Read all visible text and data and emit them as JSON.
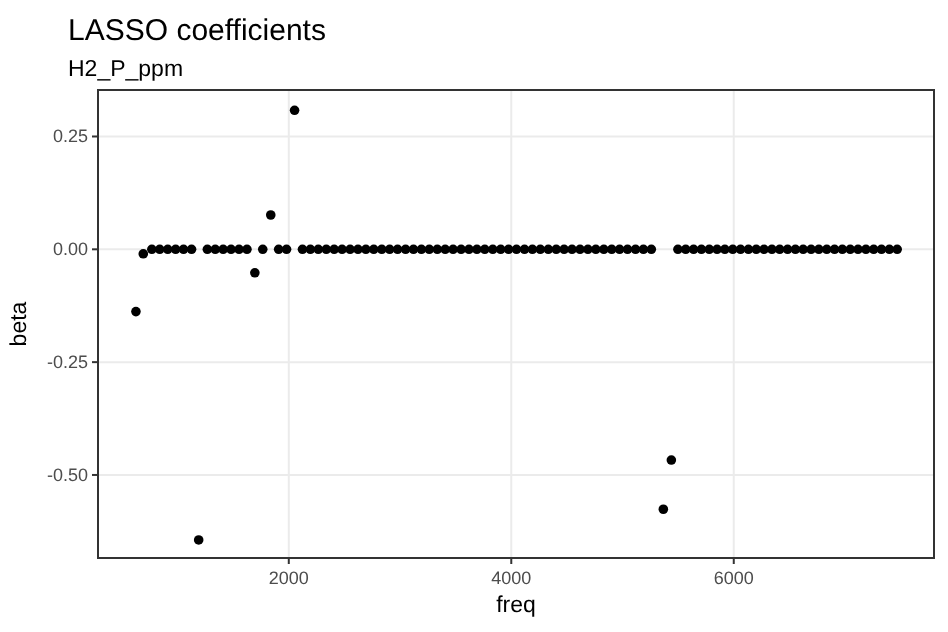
{
  "chart_data": {
    "type": "scatter",
    "title": "LASSO coefficients",
    "subtitle": "H2_P_ppm",
    "xlabel": "freq",
    "ylabel": "beta",
    "xlim": [
      285,
      7800
    ],
    "ylim": [
      -0.684,
      0.353
    ],
    "xticks": [
      2000,
      4000,
      6000
    ],
    "yticks": [
      {
        "value": -0.5,
        "label": "-0.50"
      },
      {
        "value": -0.25,
        "label": "-0.25"
      },
      {
        "value": 0,
        "label": "0.00"
      },
      {
        "value": 0.25,
        "label": "0.25"
      }
    ],
    "grid": true,
    "marker": "circle",
    "series": [
      {
        "color": "#000000",
        "x": [
          626,
          692,
          769,
          840,
          912,
          983,
          1054,
          1126,
          1190,
          1268,
          1339,
          1410,
          1481,
          1553,
          1624,
          1695,
          1766,
          1838,
          1909,
          1980,
          2052,
          2123,
          2194,
          2265,
          2337,
          2408,
          2479,
          2551,
          2622,
          2693,
          2764,
          2836,
          2907,
          2978,
          3050,
          3121,
          3192,
          3263,
          3335,
          3406,
          3477,
          3549,
          3620,
          3691,
          3762,
          3834,
          3905,
          3976,
          4047,
          4119,
          4190,
          4261,
          4333,
          4404,
          4475,
          4546,
          4618,
          4689,
          4760,
          4832,
          4903,
          4974,
          5045,
          5117,
          5188,
          5259,
          5367,
          5439,
          5498,
          5568,
          5639,
          5709,
          5780,
          5850,
          5920,
          5991,
          6061,
          6132,
          6202,
          6272,
          6343,
          6413,
          6484,
          6554,
          6624,
          6695,
          6765,
          6836,
          6906,
          6976,
          7047,
          7117,
          7188,
          7258,
          7328,
          7399,
          7469
        ],
        "values": [
          -0.138,
          -0.01,
          0,
          0,
          0,
          0,
          0,
          0,
          -0.644,
          0,
          0,
          0,
          0,
          0,
          0,
          -0.052,
          0,
          0.076,
          0,
          0,
          0.308,
          0,
          0,
          0,
          0,
          0,
          0,
          0,
          0,
          0,
          0,
          0,
          0,
          0,
          0,
          0,
          0,
          0,
          0,
          0,
          0,
          0,
          0,
          0,
          0,
          0,
          0,
          0,
          0,
          0,
          0,
          0,
          0,
          0,
          0,
          0,
          0,
          0,
          0,
          0,
          0,
          0,
          0,
          0,
          0,
          0,
          -0.576,
          -0.467,
          0,
          0,
          0,
          0,
          0,
          0,
          0,
          0,
          0,
          0,
          0,
          0,
          0,
          0,
          0,
          0,
          0,
          0,
          0,
          0,
          0,
          0,
          0,
          0,
          0,
          0,
          0,
          0,
          0
        ]
      }
    ]
  }
}
